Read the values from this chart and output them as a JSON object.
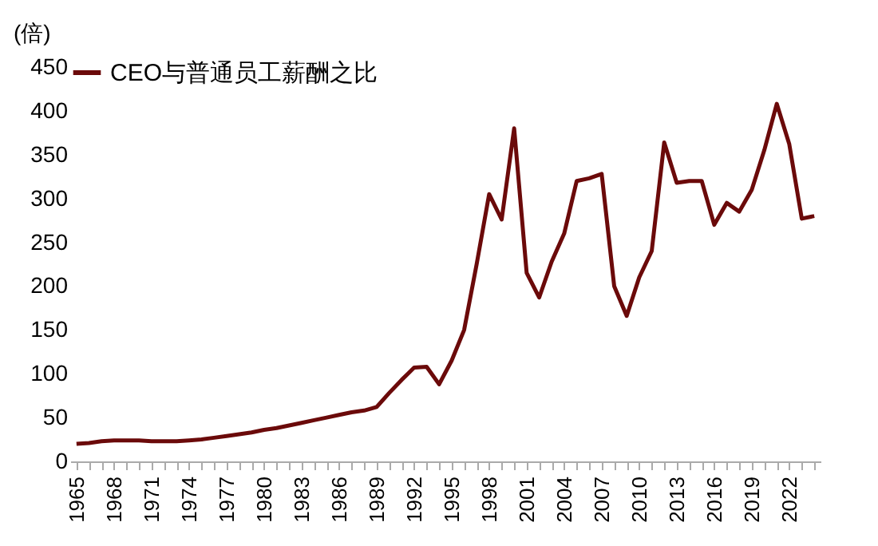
{
  "chart_data": {
    "type": "line",
    "ylabel": "(倍)",
    "categories": [
      "1965",
      null,
      null,
      "1968",
      null,
      null,
      "1971",
      null,
      null,
      "1974",
      null,
      null,
      "1977",
      null,
      null,
      "1980",
      null,
      null,
      "1983",
      null,
      null,
      "1986",
      null,
      null,
      "1989",
      null,
      null,
      "1992",
      null,
      null,
      "1995",
      null,
      null,
      "1998",
      null,
      null,
      "2001",
      null,
      null,
      "2004",
      null,
      null,
      "2007",
      null,
      null,
      "2010",
      null,
      null,
      "2013",
      null,
      null,
      "2016",
      null,
      null,
      "2019",
      null,
      null,
      "2022",
      null,
      null
    ],
    "series": [
      {
        "name": "CEO与普通员工薪酬之比",
        "color": "#6b0a0a",
        "values": [
          20,
          21,
          23,
          24,
          24,
          24,
          23,
          23,
          23,
          24,
          25,
          27,
          29,
          31,
          33,
          36,
          38,
          41,
          44,
          47,
          50,
          53,
          56,
          58,
          62,
          78,
          93,
          107,
          108,
          88,
          115,
          150,
          225,
          305,
          276,
          380,
          215,
          187,
          228,
          260,
          320,
          323,
          328,
          200,
          166,
          210,
          240,
          364,
          318,
          320,
          320,
          270,
          295,
          285,
          310,
          355,
          408,
          362,
          277,
          280
        ]
      }
    ],
    "ylim": [
      0,
      450
    ],
    "yticks": [
      0,
      50,
      100,
      150,
      200,
      250,
      300,
      350,
      400,
      450
    ],
    "grid": false,
    "legend": "top",
    "marker": "none",
    "line_style": "solid"
  }
}
